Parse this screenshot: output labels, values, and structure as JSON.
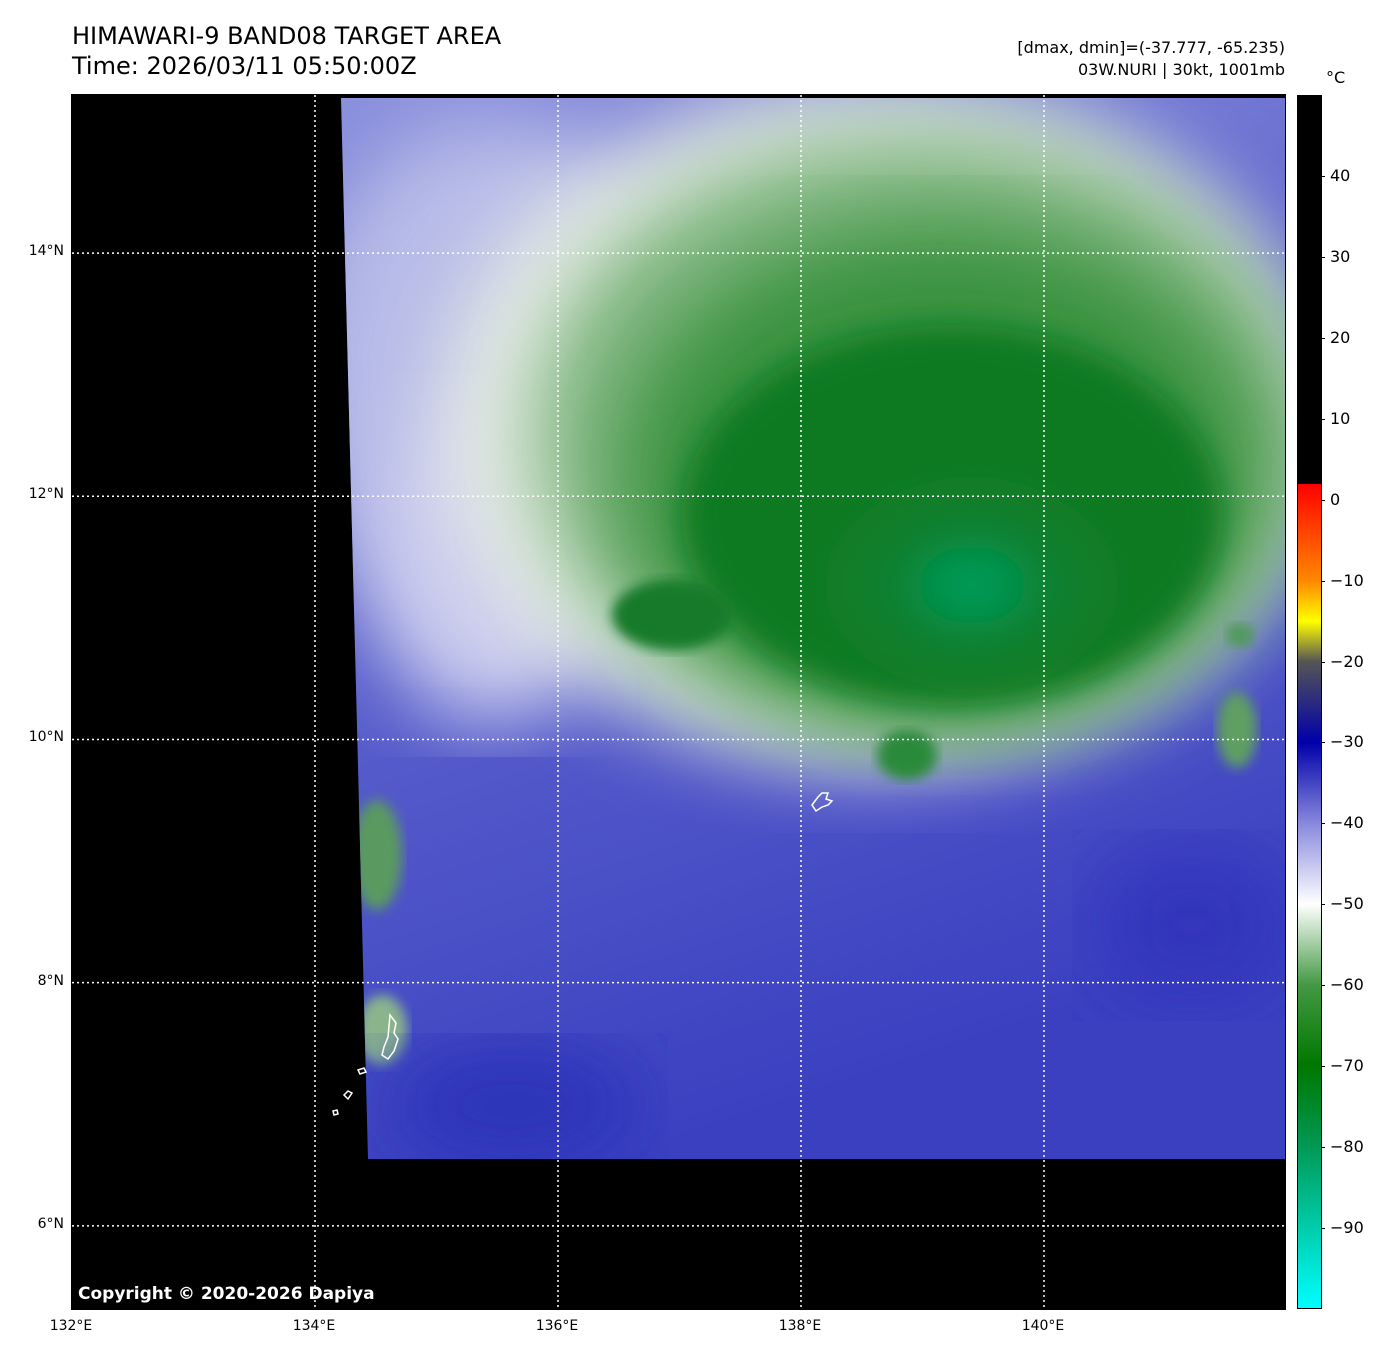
{
  "header": {
    "title_line1": "HIMAWARI-9 BAND08 TARGET AREA",
    "title_line2": "Time: 2026/03/11 05:50:00Z",
    "info_line1": "[dmax, dmin]=(-37.777, -65.235)",
    "info_line2": "03W.NURI | 30kt, 1001mb"
  },
  "map": {
    "lat_labels": [
      "14°N",
      "12°N",
      "10°N",
      "8°N",
      "6°N"
    ],
    "lat_values": [
      14,
      12,
      10,
      8,
      6
    ],
    "lon_labels": [
      "132°E",
      "134°E",
      "136°E",
      "138°E",
      "140°E"
    ],
    "lon_values": [
      132,
      134,
      136,
      138,
      140
    ],
    "lat_range": [
      5.3,
      15.3
    ],
    "lon_range": [
      132,
      142
    ],
    "copyright": "Copyright © 2020-2026 Dapiya"
  },
  "colorbar": {
    "unit": "°C",
    "range": [
      -100,
      50
    ],
    "tick_labels": [
      "40",
      "30",
      "20",
      "10",
      "0",
      "−10",
      "−20",
      "−30",
      "−40",
      "−50",
      "−60",
      "−70",
      "−80",
      "−90"
    ],
    "tick_values": [
      40,
      30,
      20,
      10,
      0,
      -10,
      -20,
      -30,
      -40,
      -50,
      -60,
      -70,
      -80,
      -90
    ],
    "colors": {
      "warm": "#000000",
      "c2": "#ff0000",
      "c_10": "#ff8800",
      "c_15": "#ffff00",
      "c_20": "#555555",
      "c_30": "#0000aa",
      "c_40": "#8888dd",
      "c_50": "#ffffff",
      "c_60": "#449944",
      "c_70": "#007700",
      "c_80": "#009955",
      "c_100": "#00ffff"
    }
  }
}
